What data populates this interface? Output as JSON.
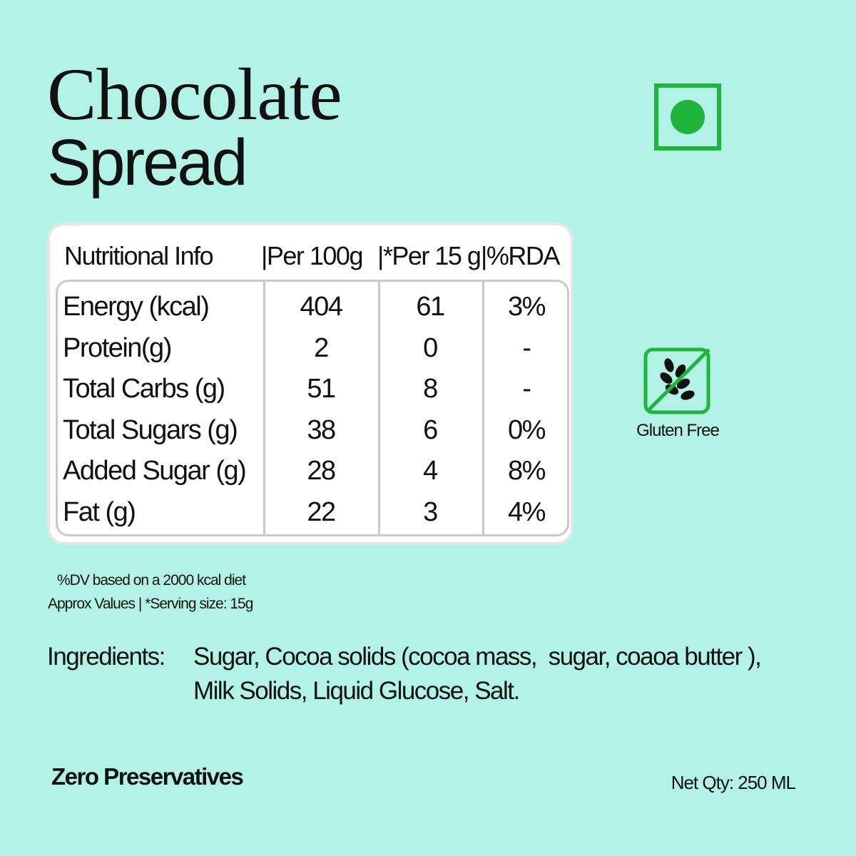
{
  "title": {
    "line1": "Chocolate",
    "line2": "Spread"
  },
  "nutrition_table": {
    "header": [
      "Nutritional Info",
      "|Per 100g",
      "|*Per 15 g",
      "|%RDA"
    ],
    "rows": [
      [
        "Energy (kcal)",
        "404",
        "61",
        "3%"
      ],
      [
        "Protein(g)",
        "2",
        "0",
        "-"
      ],
      [
        "Total Carbs (g)",
        "51",
        "8",
        "-"
      ],
      [
        "Total Sugars (g)",
        "38",
        "6",
        "0%"
      ],
      [
        "Added Sugar (g)",
        "28",
        "4",
        "8%"
      ],
      [
        "Fat (g)",
        "22",
        "3",
        "4%"
      ]
    ]
  },
  "footnotes": [
    "%DV based on a 2000 kcal diet",
    "Approx Values | *Serving size: 15g"
  ],
  "ingredients": {
    "label": "Ingredients:",
    "lines": [
      "Sugar, Cocoa solids (cocoa mass,  sugar, coaoa butter ),",
      "Milk Solids, Liquid Glucose, Salt."
    ]
  },
  "badges": {
    "gluten_free": "Gluten Free"
  },
  "zero_preservatives": "Zero Preservatives",
  "net_qty": "Net Qty: 250 ML"
}
